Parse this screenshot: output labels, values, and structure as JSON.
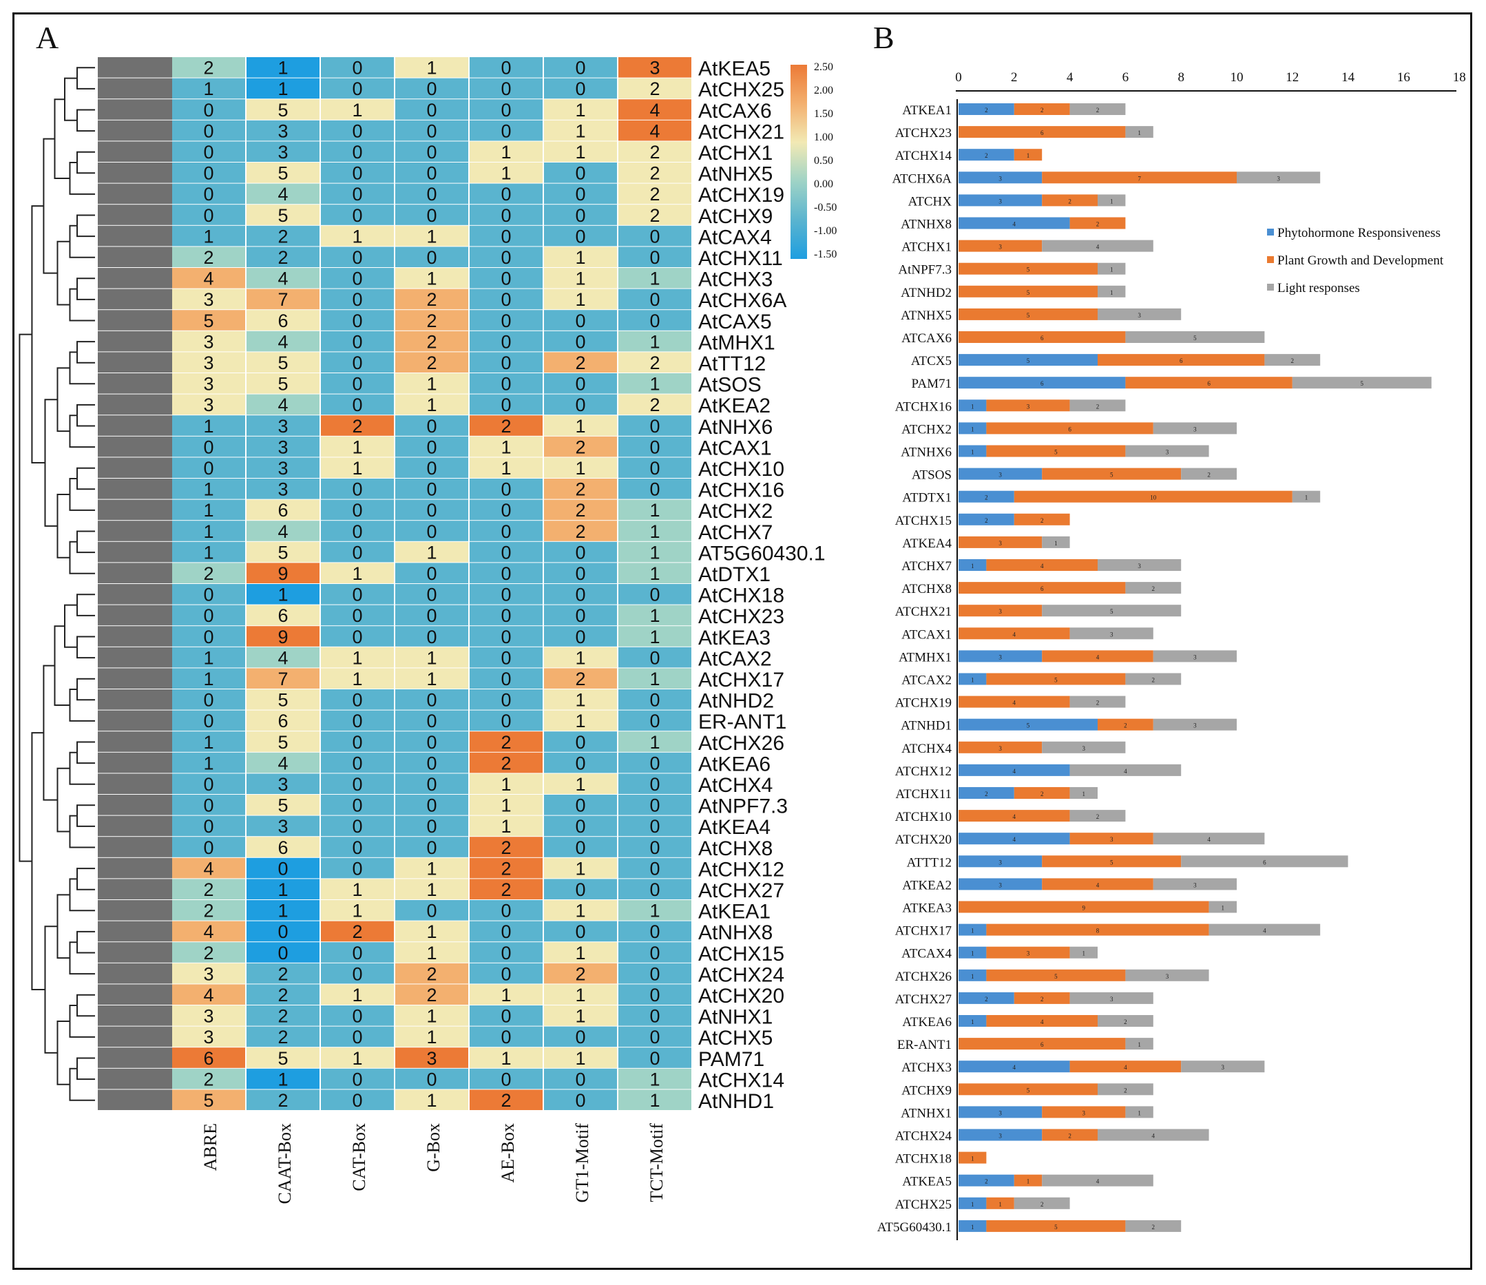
{
  "panel_a": {
    "label": "A",
    "type": "heatmap",
    "columns": [
      "ABRE",
      "CAAT-Box",
      "CAT-Box",
      "G-Box",
      "AE-Box",
      "GT1-Motif",
      "TCT-Motif"
    ],
    "rows": [
      {
        "gene": "AtKEA5",
        "values": [
          2,
          1,
          0,
          1,
          0,
          0,
          3
        ]
      },
      {
        "gene": "AtCHX25",
        "values": [
          1,
          1,
          0,
          0,
          0,
          0,
          2
        ]
      },
      {
        "gene": "AtCAX6",
        "values": [
          0,
          5,
          1,
          0,
          0,
          1,
          4
        ]
      },
      {
        "gene": "AtCHX21",
        "values": [
          0,
          3,
          0,
          0,
          0,
          1,
          4
        ]
      },
      {
        "gene": "AtCHX1",
        "values": [
          0,
          3,
          0,
          0,
          1,
          1,
          2
        ]
      },
      {
        "gene": "AtNHX5",
        "values": [
          0,
          5,
          0,
          0,
          1,
          0,
          2
        ]
      },
      {
        "gene": "AtCHX19",
        "values": [
          0,
          4,
          0,
          0,
          0,
          0,
          2
        ]
      },
      {
        "gene": "AtCHX9",
        "values": [
          0,
          5,
          0,
          0,
          0,
          0,
          2
        ]
      },
      {
        "gene": "AtCAX4",
        "values": [
          1,
          2,
          1,
          1,
          0,
          0,
          0
        ]
      },
      {
        "gene": "AtCHX11",
        "values": [
          2,
          2,
          0,
          0,
          0,
          1,
          0
        ]
      },
      {
        "gene": "AtCHX3",
        "values": [
          4,
          4,
          0,
          1,
          0,
          1,
          1
        ]
      },
      {
        "gene": "AtCHX6A",
        "values": [
          3,
          7,
          0,
          2,
          0,
          1,
          0
        ]
      },
      {
        "gene": "AtCAX5",
        "values": [
          5,
          6,
          0,
          2,
          0,
          0,
          0
        ]
      },
      {
        "gene": "AtMHX1",
        "values": [
          3,
          4,
          0,
          2,
          0,
          0,
          1
        ]
      },
      {
        "gene": "AtTT12",
        "values": [
          3,
          5,
          0,
          2,
          0,
          2,
          2
        ]
      },
      {
        "gene": "AtSOS",
        "values": [
          3,
          5,
          0,
          1,
          0,
          0,
          1
        ]
      },
      {
        "gene": "AtKEA2",
        "values": [
          3,
          4,
          0,
          1,
          0,
          0,
          2
        ]
      },
      {
        "gene": "AtNHX6",
        "values": [
          1,
          3,
          2,
          0,
          2,
          1,
          0
        ]
      },
      {
        "gene": "AtCAX1",
        "values": [
          0,
          3,
          1,
          0,
          1,
          2,
          0
        ]
      },
      {
        "gene": "AtCHX10",
        "values": [
          0,
          3,
          1,
          0,
          1,
          1,
          0
        ]
      },
      {
        "gene": "AtCHX16",
        "values": [
          1,
          3,
          0,
          0,
          0,
          2,
          0
        ]
      },
      {
        "gene": "AtCHX2",
        "values": [
          1,
          6,
          0,
          0,
          0,
          2,
          1
        ]
      },
      {
        "gene": "AtCHX7",
        "values": [
          1,
          4,
          0,
          0,
          0,
          2,
          1
        ]
      },
      {
        "gene": "AT5G60430.1",
        "values": [
          1,
          5,
          0,
          1,
          0,
          0,
          1
        ]
      },
      {
        "gene": "AtDTX1",
        "values": [
          2,
          9,
          1,
          0,
          0,
          0,
          1
        ]
      },
      {
        "gene": "AtCHX18",
        "values": [
          0,
          1,
          0,
          0,
          0,
          0,
          0
        ]
      },
      {
        "gene": "AtCHX23",
        "values": [
          0,
          6,
          0,
          0,
          0,
          0,
          1
        ]
      },
      {
        "gene": "AtKEA3",
        "values": [
          0,
          9,
          0,
          0,
          0,
          0,
          1
        ]
      },
      {
        "gene": "AtCAX2",
        "values": [
          1,
          4,
          1,
          1,
          0,
          1,
          0
        ]
      },
      {
        "gene": "AtCHX17",
        "values": [
          1,
          7,
          1,
          1,
          0,
          2,
          1
        ]
      },
      {
        "gene": "AtNHD2",
        "values": [
          0,
          5,
          0,
          0,
          0,
          1,
          0
        ]
      },
      {
        "gene": "ER-ANT1",
        "values": [
          0,
          6,
          0,
          0,
          0,
          1,
          0
        ]
      },
      {
        "gene": "AtCHX26",
        "values": [
          1,
          5,
          0,
          0,
          2,
          0,
          1
        ]
      },
      {
        "gene": "AtKEA6",
        "values": [
          1,
          4,
          0,
          0,
          2,
          0,
          0
        ]
      },
      {
        "gene": "AtCHX4",
        "values": [
          0,
          3,
          0,
          0,
          1,
          1,
          0
        ]
      },
      {
        "gene": "AtNPF7.3",
        "values": [
          0,
          5,
          0,
          0,
          1,
          0,
          0
        ]
      },
      {
        "gene": "AtKEA4",
        "values": [
          0,
          3,
          0,
          0,
          1,
          0,
          0
        ]
      },
      {
        "gene": "AtCHX8",
        "values": [
          0,
          6,
          0,
          0,
          2,
          0,
          0
        ]
      },
      {
        "gene": "AtCHX12",
        "values": [
          4,
          0,
          0,
          1,
          2,
          1,
          0
        ]
      },
      {
        "gene": "AtCHX27",
        "values": [
          2,
          1,
          1,
          1,
          2,
          0,
          0
        ]
      },
      {
        "gene": "AtKEA1",
        "values": [
          2,
          1,
          1,
          0,
          0,
          1,
          1
        ]
      },
      {
        "gene": "AtNHX8",
        "values": [
          4,
          0,
          2,
          1,
          0,
          0,
          0
        ]
      },
      {
        "gene": "AtCHX15",
        "values": [
          2,
          0,
          0,
          1,
          0,
          1,
          0
        ]
      },
      {
        "gene": "AtCHX24",
        "values": [
          3,
          2,
          0,
          2,
          0,
          2,
          0
        ]
      },
      {
        "gene": "AtCHX20",
        "values": [
          4,
          2,
          1,
          2,
          1,
          1,
          0
        ]
      },
      {
        "gene": "AtNHX1",
        "values": [
          3,
          2,
          0,
          1,
          0,
          1,
          0
        ]
      },
      {
        "gene": "AtCHX5",
        "values": [
          3,
          2,
          0,
          1,
          0,
          0,
          0
        ]
      },
      {
        "gene": "PAM71",
        "values": [
          6,
          5,
          1,
          3,
          1,
          1,
          0
        ]
      },
      {
        "gene": "AtCHX14",
        "values": [
          2,
          1,
          0,
          0,
          0,
          0,
          1
        ]
      },
      {
        "gene": "AtNHD1",
        "values": [
          5,
          2,
          0,
          1,
          2,
          0,
          1
        ]
      }
    ],
    "colorbar": {
      "ticks": [
        "2.50",
        "2.00",
        "1.50",
        "1.00",
        "0.50",
        "0.00",
        "-0.50",
        "-1.00",
        "-1.50"
      ],
      "colors": [
        "#1e9ee0",
        "#5ab4cf",
        "#9fd3c6",
        "#f2e9b4",
        "#f3b06f",
        "#ec7a36"
      ]
    }
  },
  "panel_b": {
    "label": "B",
    "type": "stacked-bar-horizontal",
    "x_ticks": [
      "0",
      "2",
      "4",
      "6",
      "8",
      "10",
      "12",
      "14",
      "16",
      "18"
    ],
    "xlim": [
      0,
      18
    ],
    "legend": [
      {
        "name": "Phytohormone Responsiveness",
        "color": "#4a8fd2"
      },
      {
        "name": "Plant Growth and Development",
        "color": "#ea7a30"
      },
      {
        "name": "Light responses",
        "color": "#a6a6a6"
      }
    ],
    "bars": [
      {
        "gene": "ATKEA1",
        "values": [
          2,
          2,
          2
        ]
      },
      {
        "gene": "ATCHX23",
        "values": [
          0,
          6,
          1
        ]
      },
      {
        "gene": "ATCHX14",
        "values": [
          2,
          1,
          0
        ]
      },
      {
        "gene": "ATCHX6A",
        "values": [
          3,
          7,
          3
        ]
      },
      {
        "gene": "ATCHX",
        "values": [
          3,
          2,
          1
        ]
      },
      {
        "gene": "ATNHX8",
        "values": [
          4,
          2,
          0
        ]
      },
      {
        "gene": "ATCHX1",
        "values": [
          0,
          3,
          4
        ]
      },
      {
        "gene": "AtNPF7.3",
        "values": [
          0,
          5,
          1
        ]
      },
      {
        "gene": "ATNHD2",
        "values": [
          0,
          5,
          1
        ]
      },
      {
        "gene": "ATNHX5",
        "values": [
          0,
          5,
          3
        ]
      },
      {
        "gene": "ATCAX6",
        "values": [
          0,
          6,
          5
        ]
      },
      {
        "gene": "ATCX5",
        "values": [
          5,
          6,
          2
        ]
      },
      {
        "gene": "PAM71",
        "values": [
          6,
          6,
          5
        ]
      },
      {
        "gene": "ATCHX16",
        "values": [
          1,
          3,
          2
        ]
      },
      {
        "gene": "ATCHX2",
        "values": [
          1,
          6,
          3
        ]
      },
      {
        "gene": "ATNHX6",
        "values": [
          1,
          5,
          3
        ]
      },
      {
        "gene": "ATSOS",
        "values": [
          3,
          5,
          2
        ]
      },
      {
        "gene": "ATDTX1",
        "values": [
          2,
          10,
          1
        ]
      },
      {
        "gene": "ATCHX15",
        "values": [
          2,
          2,
          0
        ]
      },
      {
        "gene": "ATKEA4",
        "values": [
          0,
          3,
          1
        ]
      },
      {
        "gene": "ATCHX7",
        "values": [
          1,
          4,
          3
        ]
      },
      {
        "gene": "ATCHX8",
        "values": [
          0,
          6,
          2
        ]
      },
      {
        "gene": "ATCHX21",
        "values": [
          0,
          3,
          5
        ]
      },
      {
        "gene": "ATCAX1",
        "values": [
          0,
          4,
          3
        ]
      },
      {
        "gene": "ATMHX1",
        "values": [
          3,
          4,
          3
        ]
      },
      {
        "gene": "ATCAX2",
        "values": [
          1,
          5,
          2
        ]
      },
      {
        "gene": "ATCHX19",
        "values": [
          0,
          4,
          2
        ]
      },
      {
        "gene": "ATNHD1",
        "values": [
          5,
          2,
          3
        ]
      },
      {
        "gene": "ATCHX4",
        "values": [
          0,
          3,
          3
        ]
      },
      {
        "gene": "ATCHX12",
        "values": [
          4,
          0,
          4
        ]
      },
      {
        "gene": "ATCHX11",
        "values": [
          2,
          2,
          1
        ]
      },
      {
        "gene": "ATCHX10",
        "values": [
          0,
          4,
          2
        ]
      },
      {
        "gene": "ATCHX20",
        "values": [
          4,
          3,
          4
        ]
      },
      {
        "gene": "ATTT12",
        "values": [
          3,
          5,
          6
        ]
      },
      {
        "gene": "ATKEA2",
        "values": [
          3,
          4,
          3
        ]
      },
      {
        "gene": "ATKEA3",
        "values": [
          0,
          9,
          1
        ]
      },
      {
        "gene": "ATCHX17",
        "values": [
          1,
          8,
          4
        ]
      },
      {
        "gene": "ATCAX4",
        "values": [
          1,
          3,
          1
        ]
      },
      {
        "gene": "ATCHX26",
        "values": [
          1,
          5,
          3
        ]
      },
      {
        "gene": "ATCHX27",
        "values": [
          2,
          2,
          3
        ]
      },
      {
        "gene": "ATKEA6",
        "values": [
          1,
          4,
          2
        ]
      },
      {
        "gene": "ER-ANT1",
        "values": [
          0,
          6,
          1
        ]
      },
      {
        "gene": "ATCHX3",
        "values": [
          4,
          4,
          3
        ]
      },
      {
        "gene": "ATCHX9",
        "values": [
          0,
          5,
          2
        ]
      },
      {
        "gene": "ATNHX1",
        "values": [
          3,
          3,
          1
        ]
      },
      {
        "gene": "ATCHX24",
        "values": [
          3,
          2,
          4
        ]
      },
      {
        "gene": "ATCHX18",
        "values": [
          0,
          1,
          0
        ]
      },
      {
        "gene": "ATKEA5",
        "values": [
          2,
          1,
          4
        ]
      },
      {
        "gene": "ATCHX25",
        "values": [
          1,
          1,
          2
        ]
      },
      {
        "gene": "AT5G60430.1",
        "values": [
          1,
          5,
          2
        ]
      }
    ]
  }
}
